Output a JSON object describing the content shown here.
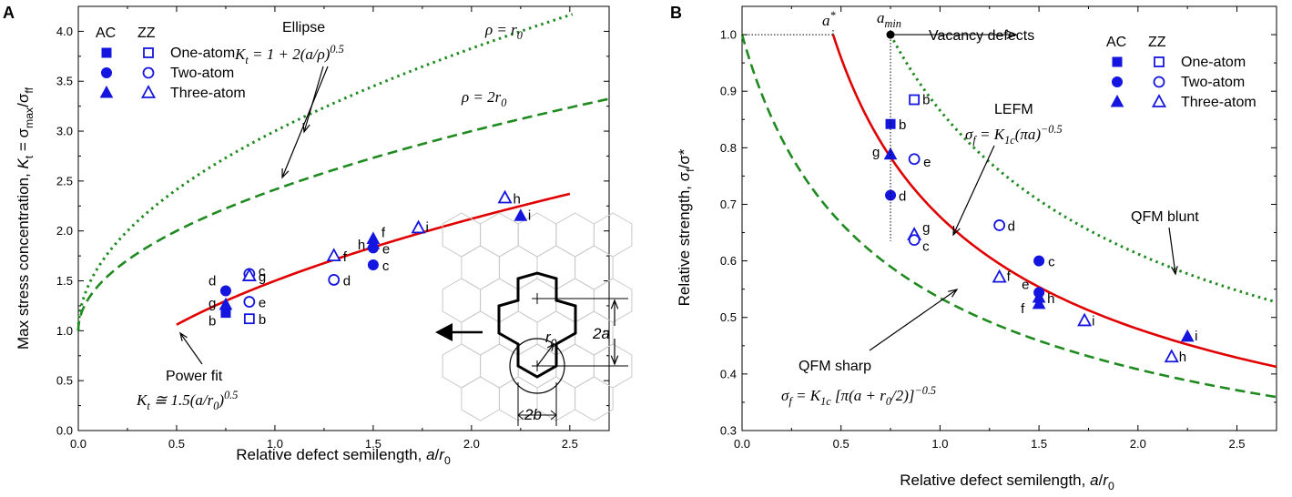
{
  "chart_data": [
    {
      "panel": "A",
      "type": "scatter",
      "xlabel": "Relative defect semilength, a/r0",
      "ylabel": "Max stress concentration, Kt = σmax/σff",
      "xlim": [
        0,
        2.7
      ],
      "ylim": [
        0,
        4.25
      ],
      "xticks": [
        "0.0",
        "0.5",
        "1.0",
        "1.5",
        "2.0",
        "2.5"
      ],
      "yticks": [
        "0.0",
        "0.5",
        "1.0",
        "1.5",
        "2.0",
        "2.5",
        "3.0",
        "3.5",
        "4.0"
      ],
      "legend": {
        "headers": [
          "AC",
          "ZZ"
        ],
        "entries": [
          "One-atom",
          "Two-atom",
          "Three-atom"
        ],
        "position": "top-left"
      },
      "series": [
        {
          "name": "ρ = r0",
          "style": "dotted",
          "color": "#1f8a1f",
          "formula": "Kt = 1 + 2(a/r0)^0.5",
          "x_range": [
            0,
            2.7
          ]
        },
        {
          "name": "ρ = 2r0",
          "style": "dashed",
          "color": "#1f8a1f",
          "formula": "Kt = 1 + 2(a/2r0)^0.5",
          "x_range": [
            0,
            2.7
          ]
        },
        {
          "name": "Power fit",
          "style": "solid",
          "color": "#e00000",
          "formula": "Kt ≅ 1.5(a/r0)^0.5",
          "x_range": [
            0.5,
            2.5
          ]
        }
      ],
      "points": [
        {
          "label": "b",
          "group": "AC",
          "shape": "square",
          "x": 0.75,
          "y": 1.18
        },
        {
          "label": "b",
          "group": "ZZ",
          "shape": "square",
          "x": 0.87,
          "y": 1.12
        },
        {
          "label": "d",
          "group": "AC",
          "shape": "circle",
          "x": 0.75,
          "y": 1.4
        },
        {
          "label": "e",
          "group": "ZZ",
          "shape": "circle",
          "x": 0.87,
          "y": 1.29
        },
        {
          "label": "c",
          "group": "ZZ",
          "shape": "circle",
          "x": 0.87,
          "y": 1.57
        },
        {
          "label": "d",
          "group": "ZZ",
          "shape": "circle",
          "x": 1.3,
          "y": 1.51
        },
        {
          "label": "c",
          "group": "AC",
          "shape": "circle",
          "x": 1.5,
          "y": 1.66
        },
        {
          "label": "e",
          "group": "AC",
          "shape": "circle",
          "x": 1.5,
          "y": 1.83
        },
        {
          "label": "g",
          "group": "AC",
          "shape": "triangle",
          "x": 0.75,
          "y": 1.26
        },
        {
          "label": "g",
          "group": "ZZ",
          "shape": "triangle",
          "x": 0.87,
          "y": 1.55
        },
        {
          "label": "f",
          "group": "ZZ",
          "shape": "triangle",
          "x": 1.3,
          "y": 1.75
        },
        {
          "label": "h",
          "group": "AC",
          "shape": "triangle",
          "x": 1.5,
          "y": 1.87
        },
        {
          "label": "f",
          "group": "AC",
          "shape": "triangle",
          "x": 1.5,
          "y": 1.92
        },
        {
          "label": "i",
          "group": "ZZ",
          "shape": "triangle",
          "x": 1.73,
          "y": 2.03
        },
        {
          "label": "h",
          "group": "ZZ",
          "shape": "triangle",
          "x": 2.17,
          "y": 2.33
        },
        {
          "label": "i",
          "group": "AC",
          "shape": "triangle",
          "x": 2.25,
          "y": 2.15
        }
      ],
      "annotations": {
        "ellipse_title": "Ellipse",
        "ellipse_formula": "Kt = 1 + 2(a/ρ)^0.5",
        "rho1": "ρ = r0",
        "rho2": "ρ = 2r0",
        "power_fit_title": "Power fit",
        "power_fit_formula": "Kt ≅ 1.5(a/r0)^0.5",
        "inset_labels": [
          "2a",
          "r0",
          "2b"
        ]
      }
    },
    {
      "panel": "B",
      "type": "scatter",
      "xlabel": "Relative defect semilength, a/r0",
      "ylabel": "Relative strength, σf/σ*",
      "xlim": [
        0,
        2.7
      ],
      "ylim": [
        0.3,
        1.05
      ],
      "xticks": [
        "0.0",
        "0.5",
        "1.0",
        "1.5",
        "2.0",
        "2.5"
      ],
      "yticks": [
        "0.3",
        "0.4",
        "0.5",
        "0.6",
        "0.7",
        "0.8",
        "0.9",
        "1.0"
      ],
      "legend": {
        "headers": [
          "AC",
          "ZZ"
        ],
        "entries": [
          "One-atom",
          "Two-atom",
          "Three-atom"
        ],
        "position": "top-right"
      },
      "series": [
        {
          "name": "LEFM",
          "style": "solid",
          "color": "#e00000",
          "formula": "σf = K1c (πa)^-0.5",
          "x_range": [
            0.46,
            2.7
          ]
        },
        {
          "name": "QFM blunt",
          "style": "dotted",
          "color": "#1f8a1f",
          "formula": "σf/σ* = (0.75/a)^0.5",
          "x_range": [
            0.75,
            2.7
          ]
        },
        {
          "name": "QFM sharp",
          "style": "dashed",
          "color": "#1f8a1f",
          "formula": "σf = K1c [π(a + r0/2)]^-0.5",
          "x_range": [
            0,
            2.7
          ]
        }
      ],
      "points": [
        {
          "label": "b",
          "group": "ZZ",
          "shape": "square",
          "x": 0.87,
          "y": 0.885
        },
        {
          "label": "b",
          "group": "AC",
          "shape": "square",
          "x": 0.75,
          "y": 0.842
        },
        {
          "label": "g",
          "group": "AC",
          "shape": "triangle",
          "x": 0.75,
          "y": 0.788
        },
        {
          "label": "e",
          "group": "ZZ",
          "shape": "circle",
          "x": 0.87,
          "y": 0.78
        },
        {
          "label": "d",
          "group": "AC",
          "shape": "circle",
          "x": 0.75,
          "y": 0.716
        },
        {
          "label": "d",
          "group": "ZZ",
          "shape": "circle",
          "x": 1.3,
          "y": 0.663
        },
        {
          "label": "g",
          "group": "ZZ",
          "shape": "triangle",
          "x": 0.87,
          "y": 0.646
        },
        {
          "label": "c",
          "group": "ZZ",
          "shape": "circle",
          "x": 0.87,
          "y": 0.637
        },
        {
          "label": "c",
          "group": "AC",
          "shape": "circle",
          "x": 1.5,
          "y": 0.6
        },
        {
          "label": "f",
          "group": "ZZ",
          "shape": "triangle",
          "x": 1.3,
          "y": 0.571
        },
        {
          "label": "e",
          "group": "AC",
          "shape": "circle",
          "x": 1.5,
          "y": 0.544
        },
        {
          "label": "h",
          "group": "AC",
          "shape": "triangle",
          "x": 1.5,
          "y": 0.535
        },
        {
          "label": "f",
          "group": "AC",
          "shape": "triangle",
          "x": 1.5,
          "y": 0.524
        },
        {
          "label": "i",
          "group": "ZZ",
          "shape": "triangle",
          "x": 1.73,
          "y": 0.494
        },
        {
          "label": "i",
          "group": "AC",
          "shape": "triangle",
          "x": 2.25,
          "y": 0.466
        },
        {
          "label": "h",
          "group": "ZZ",
          "shape": "triangle",
          "x": 2.17,
          "y": 0.43
        }
      ],
      "annotations": {
        "a_star": "a*",
        "a_min": "a min",
        "a_star_x": 0.46,
        "a_min_x": 0.75,
        "vacancy": "Vacancy defects",
        "lefm_title": "LEFM",
        "lefm_formula": "σf = K1c(πa)^-0.5",
        "qfm_blunt": "QFM blunt",
        "qfm_sharp": "QFM sharp",
        "qfm_sharp_formula": "σf = K1c [π(a + r0/2)]^-0.5"
      }
    }
  ],
  "colors": {
    "marker": "#1515e0",
    "green": "#1f8a1f",
    "red": "#e00000"
  }
}
